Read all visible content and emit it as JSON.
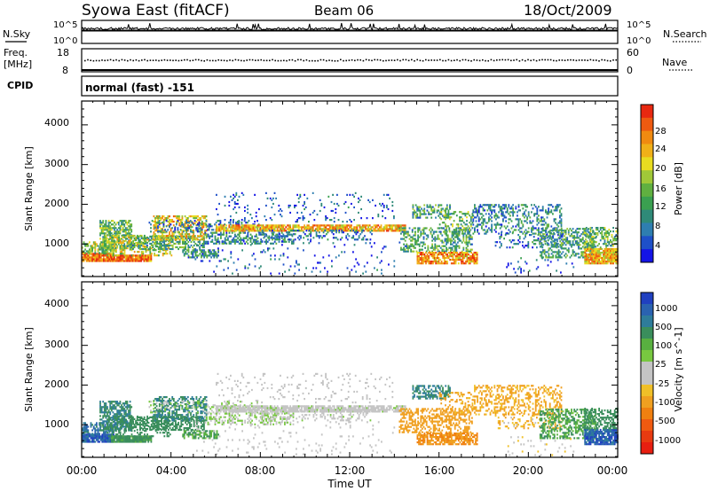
{
  "header": {
    "title": "Syowa East (fitACF)",
    "beam": "Beam 06",
    "date": "18/Oct/2009"
  },
  "noise_panel": {
    "left_label": "N.Sky",
    "right_label": "N.Search",
    "left_ticks": [
      "10^5",
      "10^0"
    ],
    "right_ticks": [
      "10^5",
      "10^0"
    ]
  },
  "freq_panel": {
    "left_label_top": "Freq.",
    "left_label_bottom": "[MHz]",
    "right_label": "Nave",
    "left_ticks": [
      "18",
      "8"
    ],
    "right_ticks": [
      "60",
      "0"
    ]
  },
  "cpid": {
    "label": "CPID",
    "value": "normal (fast) -151"
  },
  "time_axis": {
    "label": "Time UT",
    "ticks": [
      "00:00",
      "04:00",
      "08:00",
      "12:00",
      "16:00",
      "20:00",
      "00:00"
    ]
  },
  "chart_data": [
    {
      "type": "heatmap",
      "name": "power-panel",
      "ylabel": "Slant Range [km]",
      "yticks": [
        "1000",
        "2000",
        "3000",
        "4000"
      ],
      "ylim": [
        180,
        4600
      ],
      "xlim_hours": [
        0,
        24
      ],
      "colorbar": {
        "label": "Power [dB]",
        "ticks": [
          "4",
          "8",
          "12",
          "16",
          "20",
          "24",
          "28"
        ],
        "colors": [
          "#1414e6",
          "#1e50c8",
          "#2e7eb0",
          "#2f8a78",
          "#3aa050",
          "#60b040",
          "#a0c838",
          "#e8dc20",
          "#f0b018",
          "#f08a10",
          "#ee5a10",
          "#e82810"
        ]
      }
    },
    {
      "type": "heatmap",
      "name": "velocity-panel",
      "ylabel": "Slant Range [km]",
      "yticks": [
        "1000",
        "2000",
        "3000",
        "4000"
      ],
      "ylim": [
        180,
        4600
      ],
      "xlim_hours": [
        0,
        24
      ],
      "colorbar": {
        "label": "Velocity [m s^-1]",
        "ticks": [
          "1000",
          "500",
          "100",
          "25",
          "-25",
          "-100",
          "-500",
          "-1000"
        ],
        "colors": [
          "#2040c0",
          "#2a62b0",
          "#2e7c9a",
          "#3a8e5c",
          "#58b040",
          "#78c840",
          "#c4c4c4",
          "#c4c4c4",
          "#f0c028",
          "#f0a020",
          "#f08010",
          "#f05a10",
          "#e83a10",
          "#e81e10"
        ]
      }
    }
  ]
}
